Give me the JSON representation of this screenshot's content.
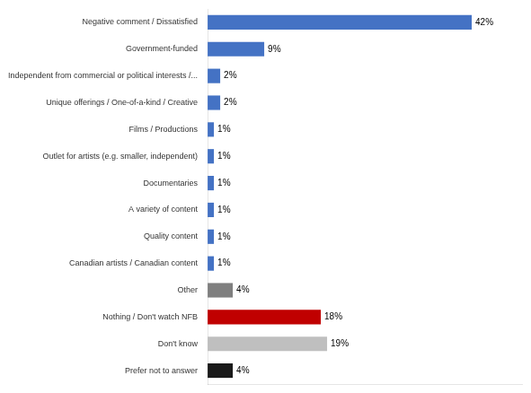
{
  "chart_data": {
    "type": "bar",
    "orientation": "horizontal",
    "categories": [
      "Negative comment / Dissatisfied",
      "Government-funded",
      "Independent from commercial or political interests /...",
      "Unique offerings / One-of-a-kind / Creative",
      "Films / Productions",
      "Outlet for artists (e.g. smaller, independent)",
      "Documentaries",
      "A variety of content",
      "Quality content",
      "Canadian artists / Canadian content",
      "Other",
      "Nothing / Don't watch NFB",
      "Don't know",
      "Prefer not to answer"
    ],
    "values": [
      42,
      9,
      2,
      2,
      1,
      1,
      1,
      1,
      1,
      1,
      4,
      18,
      19,
      4
    ],
    "value_labels": [
      "42%",
      "9%",
      "2%",
      "2%",
      "1%",
      "1%",
      "1%",
      "1%",
      "1%",
      "1%",
      "4%",
      "18%",
      "19%",
      "4%"
    ],
    "colors": [
      "#4472C4",
      "#4472C4",
      "#4472C4",
      "#4472C4",
      "#4472C4",
      "#4472C4",
      "#4472C4",
      "#4472C4",
      "#4472C4",
      "#4472C4",
      "#7F7F7F",
      "#C00000",
      "#BFBFBF",
      "#1A1A1A"
    ],
    "xlim": [
      0,
      50
    ],
    "data_labels": true,
    "tick_labels": "y",
    "grid": false
  }
}
